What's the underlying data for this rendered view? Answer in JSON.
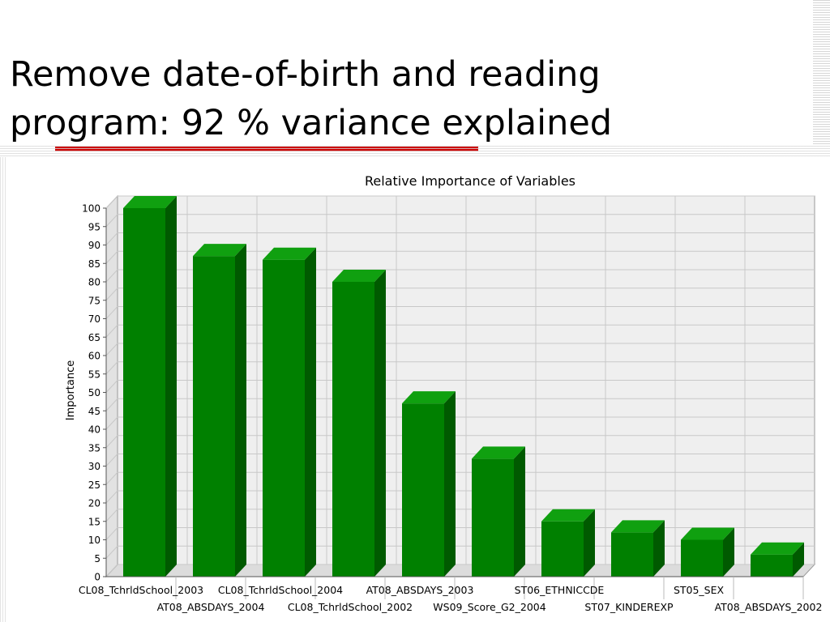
{
  "slide": {
    "title_line1": "Remove date-of-birth and reading",
    "title_line2": "program: 92 % variance explained"
  },
  "colors": {
    "accent_underline": "#cc0000",
    "bar_front": "#008000",
    "bar_side": "#005a00",
    "bar_top": "#10a010",
    "plot_background": "#efefef",
    "grid": "#c8c8c8"
  },
  "chart_data": {
    "type": "bar",
    "title": "Relative Importance of Variables",
    "xlabel": "",
    "ylabel": "Importance",
    "ylim": [
      0,
      100
    ],
    "yticks": [
      0,
      5,
      10,
      15,
      20,
      25,
      30,
      35,
      40,
      45,
      50,
      55,
      60,
      65,
      70,
      75,
      80,
      85,
      90,
      95,
      100
    ],
    "grid": true,
    "style": "3d",
    "categories": [
      "CL08_TchrldSchool_2003",
      "AT08_ABSDAYS_2004",
      "CL08_TchrldSchool_2004",
      "CL08_TchrldSchool_2002",
      "AT08_ABSDAYS_2003",
      "WS09_Score_G2_2004",
      "ST06_ETHNICCDE",
      "ST07_KINDEREXP",
      "ST05_SEX",
      "AT08_ABSDAYS_2002"
    ],
    "values": [
      100,
      87,
      86,
      80,
      47,
      32,
      15,
      12,
      10,
      6
    ]
  }
}
